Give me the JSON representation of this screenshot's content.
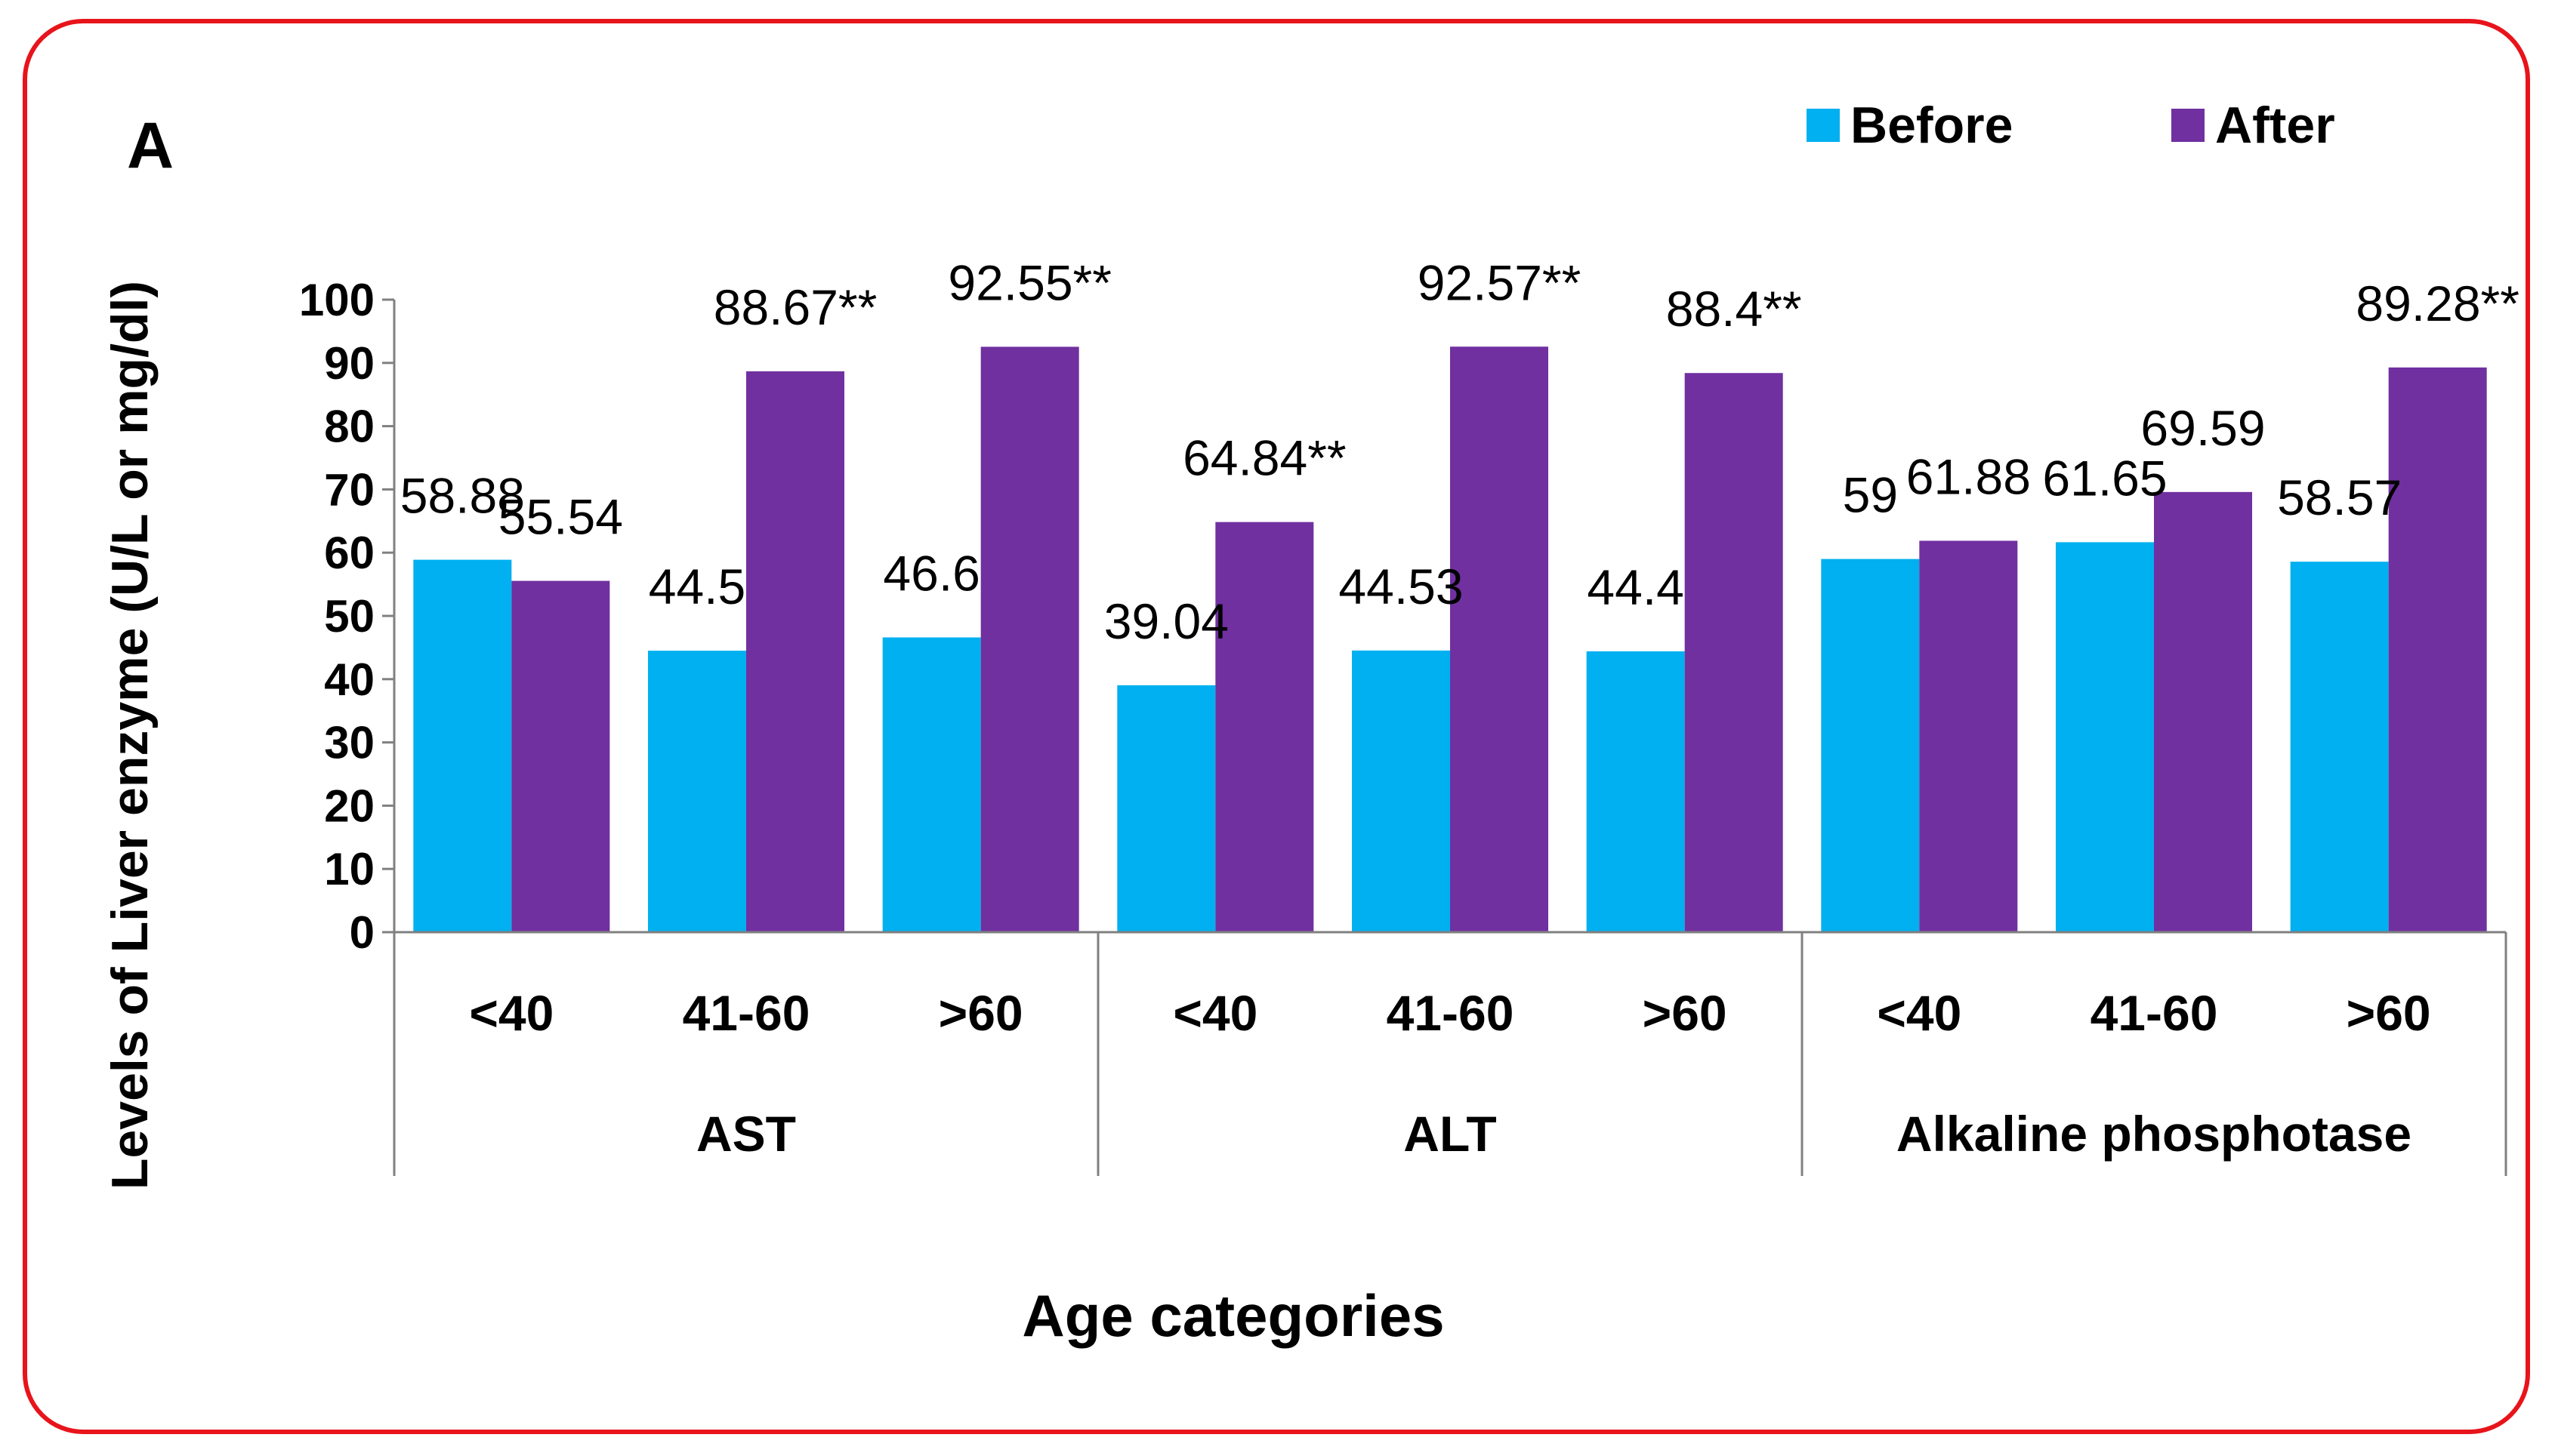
{
  "panel_label": "A",
  "colors": {
    "frame": "#e8141b",
    "before": "#00b0f0",
    "after": "#7030a0",
    "axis": "#808080"
  },
  "chart_data": {
    "type": "bar",
    "ylabel": "Levels of Liver  enzyme (U/L or mg/dl)",
    "xlabel": "Age categories",
    "ylim": [
      0,
      100
    ],
    "yticks": [
      0,
      10,
      20,
      30,
      40,
      50,
      60,
      70,
      80,
      90,
      100
    ],
    "legend_position": "top-right",
    "groups": [
      {
        "name": "AST",
        "categories": [
          "<40",
          "41-60",
          ">60"
        ]
      },
      {
        "name": "ALT",
        "categories": [
          "<40",
          "41-60",
          ">60"
        ]
      },
      {
        "name": "Alkaline phosphotase",
        "categories": [
          "<40",
          "41-60",
          ">60"
        ]
      }
    ],
    "series": [
      {
        "name": "Before",
        "values": [
          58.88,
          44.5,
          46.6,
          39.04,
          44.53,
          44.4,
          59,
          61.65,
          58.57
        ],
        "labels": [
          "58.88",
          "44.5",
          "46.6",
          "39.04",
          "44.53",
          "44.4",
          "59",
          "61.65",
          "58.57"
        ]
      },
      {
        "name": "After",
        "values": [
          55.54,
          88.67,
          92.55,
          64.84,
          92.57,
          88.4,
          61.88,
          69.59,
          89.28
        ],
        "labels": [
          "55.54",
          "88.67**",
          "92.55**",
          "64.84**",
          "92.57**",
          "88.4**",
          "61.88",
          "69.59",
          "89.28**"
        ]
      }
    ]
  }
}
